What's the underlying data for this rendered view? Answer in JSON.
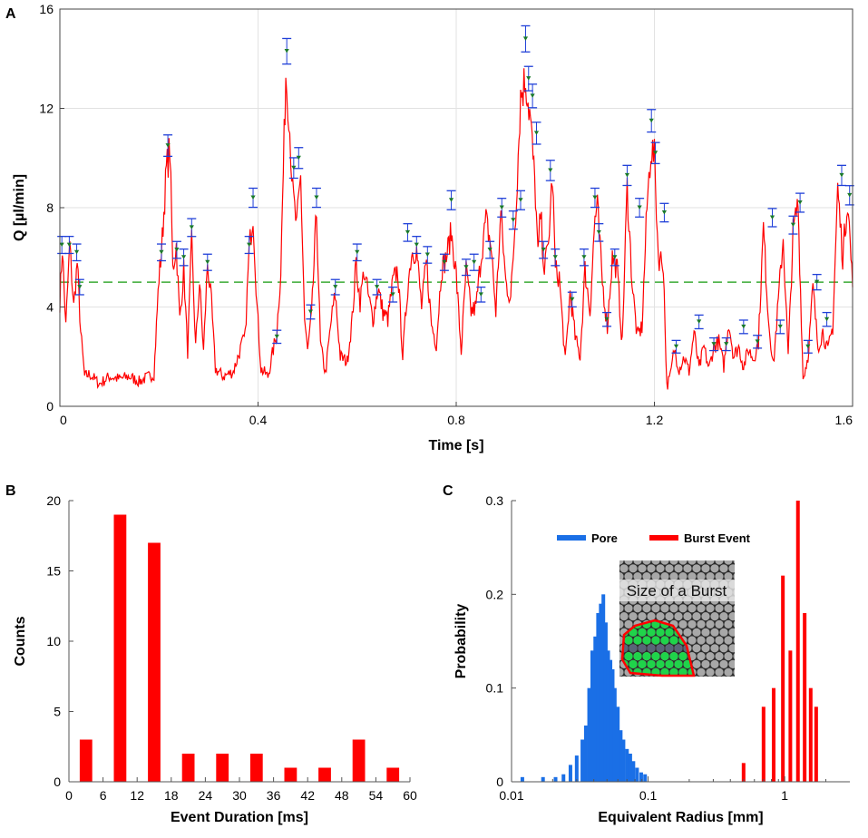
{
  "chart_data": [
    {
      "panel": "A",
      "type": "line",
      "xlabel": "Time [s]",
      "ylabel": "Q [µl/min]",
      "xlim": [
        0,
        1.6
      ],
      "ylim": [
        0,
        16
      ],
      "x_ticks": [
        0,
        0.4,
        0.8,
        1.2,
        1.6
      ],
      "x_tick_labels": [
        "0",
        "0.4",
        "0.8",
        "1.2",
        "1.6"
      ],
      "y_ticks": [
        0,
        4,
        8,
        12,
        16
      ],
      "y_tick_labels": [
        "0",
        "4",
        "8",
        "12",
        "16"
      ],
      "grid": true,
      "threshold": 5.0,
      "threshold_color": "#3aaa35",
      "line_color": "#ff0000",
      "errorbar_color": "#1f3fd8",
      "marker_color": "#1a7a2a",
      "series_keypoints": [
        [
          0,
          4.2
        ],
        [
          0.005,
          6.4
        ],
        [
          0.012,
          3.2
        ],
        [
          0.02,
          6.5
        ],
        [
          0.028,
          4.0
        ],
        [
          0.035,
          5.8
        ],
        [
          0.042,
          3.0
        ],
        [
          0.05,
          1.2
        ],
        [
          0.06,
          1.3
        ],
        [
          0.08,
          0.9
        ],
        [
          0.1,
          1.2
        ],
        [
          0.12,
          1.1
        ],
        [
          0.14,
          1.2
        ],
        [
          0.16,
          1.0
        ],
        [
          0.19,
          1.3
        ],
        [
          0.2,
          5.2
        ],
        [
          0.205,
          6.2
        ],
        [
          0.215,
          9.5
        ],
        [
          0.222,
          10.4
        ],
        [
          0.228,
          5.5
        ],
        [
          0.235,
          6.5
        ],
        [
          0.242,
          3.5
        ],
        [
          0.25,
          5.5
        ],
        [
          0.258,
          2.2
        ],
        [
          0.266,
          6.6
        ],
        [
          0.274,
          2.4
        ],
        [
          0.282,
          5.0
        ],
        [
          0.29,
          2.2
        ],
        [
          0.298,
          5.8
        ],
        [
          0.306,
          4.1
        ],
        [
          0.314,
          1.5
        ],
        [
          0.33,
          1.2
        ],
        [
          0.35,
          1.4
        ],
        [
          0.366,
          2.4
        ],
        [
          0.374,
          2.8
        ],
        [
          0.382,
          6.3
        ],
        [
          0.39,
          7.8
        ],
        [
          0.398,
          4.0
        ],
        [
          0.406,
          1.5
        ],
        [
          0.42,
          1.2
        ],
        [
          0.438,
          3.0
        ],
        [
          0.446,
          5.5
        ],
        [
          0.456,
          13.4
        ],
        [
          0.462,
          12.0
        ],
        [
          0.47,
          8.6
        ],
        [
          0.478,
          7.2
        ],
        [
          0.486,
          9.2
        ],
        [
          0.494,
          3.5
        ],
        [
          0.5,
          2.2
        ],
        [
          0.508,
          3.6
        ],
        [
          0.518,
          7.8
        ],
        [
          0.526,
          2.5
        ],
        [
          0.536,
          1.3
        ],
        [
          0.548,
          3.5
        ],
        [
          0.556,
          4.5
        ],
        [
          0.566,
          2.0
        ],
        [
          0.58,
          1.8
        ],
        [
          0.59,
          3.5
        ],
        [
          0.598,
          5.8
        ],
        [
          0.606,
          4.2
        ],
        [
          0.614,
          5.5
        ],
        [
          0.622,
          4.5
        ],
        [
          0.632,
          3.5
        ],
        [
          0.642,
          4.8
        ],
        [
          0.652,
          3.8
        ],
        [
          0.662,
          3.5
        ],
        [
          0.672,
          5.0
        ],
        [
          0.682,
          5.5
        ],
        [
          0.692,
          2.0
        ],
        [
          0.702,
          4.8
        ],
        [
          0.71,
          6.2
        ],
        [
          0.72,
          6.3
        ],
        [
          0.73,
          4.0
        ],
        [
          0.74,
          5.8
        ],
        [
          0.75,
          3.3
        ],
        [
          0.76,
          2.5
        ],
        [
          0.77,
          5.5
        ],
        [
          0.78,
          6.0
        ],
        [
          0.79,
          7.0
        ],
        [
          0.8,
          5.3
        ],
        [
          0.81,
          2.2
        ],
        [
          0.82,
          5.5
        ],
        [
          0.83,
          3.8
        ],
        [
          0.84,
          4.0
        ],
        [
          0.85,
          6.0
        ],
        [
          0.86,
          7.5
        ],
        [
          0.87,
          6.5
        ],
        [
          0.88,
          3.8
        ],
        [
          0.89,
          7.8
        ],
        [
          0.9,
          5.0
        ],
        [
          0.91,
          4.3
        ],
        [
          0.92,
          7.8
        ],
        [
          0.93,
          12.5
        ],
        [
          0.94,
          13.2
        ],
        [
          0.95,
          11.5
        ],
        [
          0.96,
          8.5
        ],
        [
          0.965,
          6.0
        ],
        [
          0.97,
          7.8
        ],
        [
          0.978,
          5.5
        ],
        [
          0.986,
          6.5
        ],
        [
          0.994,
          9.3
        ],
        [
          1.0,
          5.5
        ],
        [
          1.008,
          5.2
        ],
        [
          1.02,
          1.8
        ],
        [
          1.03,
          4.6
        ],
        [
          1.04,
          2.8
        ],
        [
          1.05,
          2.0
        ],
        [
          1.06,
          5.5
        ],
        [
          1.07,
          3.8
        ],
        [
          1.08,
          7.6
        ],
        [
          1.085,
          8.0
        ],
        [
          1.095,
          5.0
        ],
        [
          1.105,
          3.2
        ],
        [
          1.115,
          6.0
        ],
        [
          1.125,
          5.5
        ],
        [
          1.135,
          2.5
        ],
        [
          1.145,
          8.8
        ],
        [
          1.155,
          5.0
        ],
        [
          1.165,
          2.8
        ],
        [
          1.175,
          3.2
        ],
        [
          1.185,
          8.0
        ],
        [
          1.193,
          10.4
        ],
        [
          1.2,
          10.0
        ],
        [
          1.208,
          6.0
        ],
        [
          1.218,
          5.8
        ],
        [
          1.225,
          0.8
        ],
        [
          1.232,
          1.2
        ],
        [
          1.24,
          2.3
        ],
        [
          1.25,
          1.5
        ],
        [
          1.26,
          2.0
        ],
        [
          1.27,
          1.4
        ],
        [
          1.28,
          3.0
        ],
        [
          1.29,
          1.5
        ],
        [
          1.3,
          2.4
        ],
        [
          1.31,
          1.5
        ],
        [
          1.32,
          2.4
        ],
        [
          1.33,
          2.6
        ],
        [
          1.34,
          1.6
        ],
        [
          1.35,
          3.4
        ],
        [
          1.36,
          2.0
        ],
        [
          1.37,
          2.4
        ],
        [
          1.38,
          1.6
        ],
        [
          1.39,
          2.3
        ],
        [
          1.4,
          1.9
        ],
        [
          1.41,
          2.6
        ],
        [
          1.42,
          7.2
        ],
        [
          1.43,
          3.6
        ],
        [
          1.44,
          1.6
        ],
        [
          1.45,
          4.2
        ],
        [
          1.46,
          6.8
        ],
        [
          1.47,
          2.0
        ],
        [
          1.48,
          7.0
        ],
        [
          1.49,
          8.2
        ],
        [
          1.5,
          1.1
        ],
        [
          1.51,
          2.0
        ],
        [
          1.52,
          4.8
        ],
        [
          1.53,
          2.4
        ],
        [
          1.54,
          3.0
        ],
        [
          1.55,
          2.2
        ],
        [
          1.56,
          3.2
        ],
        [
          1.57,
          8.8
        ],
        [
          1.58,
          6.0
        ],
        [
          1.59,
          8.4
        ],
        [
          1.6,
          4.8
        ]
      ],
      "burst_peaks": [
        [
          0.004,
          6.5
        ],
        [
          0.019,
          6.5
        ],
        [
          0.034,
          6.2
        ],
        [
          0.04,
          4.8
        ],
        [
          0.205,
          6.2
        ],
        [
          0.218,
          10.5
        ],
        [
          0.236,
          6.3
        ],
        [
          0.25,
          6.0
        ],
        [
          0.266,
          7.2
        ],
        [
          0.298,
          5.8
        ],
        [
          0.382,
          6.5
        ],
        [
          0.39,
          8.4
        ],
        [
          0.438,
          2.8
        ],
        [
          0.458,
          14.3
        ],
        [
          0.472,
          9.6
        ],
        [
          0.482,
          10.0
        ],
        [
          0.506,
          3.8
        ],
        [
          0.518,
          8.4
        ],
        [
          0.556,
          4.8
        ],
        [
          0.6,
          6.2
        ],
        [
          0.64,
          4.8
        ],
        [
          0.672,
          4.5
        ],
        [
          0.702,
          7.0
        ],
        [
          0.72,
          6.5
        ],
        [
          0.742,
          6.1
        ],
        [
          0.776,
          5.8
        ],
        [
          0.79,
          8.3
        ],
        [
          0.82,
          5.6
        ],
        [
          0.836,
          5.8
        ],
        [
          0.85,
          4.5
        ],
        [
          0.868,
          6.3
        ],
        [
          0.892,
          8.0
        ],
        [
          0.915,
          7.5
        ],
        [
          0.93,
          8.3
        ],
        [
          0.94,
          14.8
        ],
        [
          0.946,
          13.2
        ],
        [
          0.954,
          12.5
        ],
        [
          0.962,
          11.0
        ],
        [
          0.976,
          6.3
        ],
        [
          0.99,
          9.5
        ],
        [
          1.0,
          6.0
        ],
        [
          1.034,
          4.3
        ],
        [
          1.058,
          6.0
        ],
        [
          1.08,
          8.4
        ],
        [
          1.088,
          7.0
        ],
        [
          1.104,
          3.5
        ],
        [
          1.12,
          6.0
        ],
        [
          1.145,
          9.3
        ],
        [
          1.17,
          8.0
        ],
        [
          1.194,
          11.5
        ],
        [
          1.202,
          10.2
        ],
        [
          1.22,
          7.8
        ],
        [
          1.244,
          2.4
        ],
        [
          1.29,
          3.4
        ],
        [
          1.32,
          2.5
        ],
        [
          1.345,
          2.5
        ],
        [
          1.38,
          3.2
        ],
        [
          1.408,
          2.6
        ],
        [
          1.438,
          7.6
        ],
        [
          1.454,
          3.2
        ],
        [
          1.48,
          7.3
        ],
        [
          1.494,
          8.2
        ],
        [
          1.51,
          2.4
        ],
        [
          1.528,
          5.0
        ],
        [
          1.548,
          3.5
        ],
        [
          1.578,
          9.3
        ],
        [
          1.594,
          8.5
        ]
      ]
    },
    {
      "panel": "B",
      "type": "bar",
      "xlabel": "Event Duration [ms]",
      "ylabel": "Counts",
      "xlim": [
        0,
        60
      ],
      "ylim": [
        0,
        20
      ],
      "x_ticks": [
        0,
        6,
        12,
        18,
        24,
        30,
        36,
        42,
        48,
        54,
        60
      ],
      "x_tick_labels": [
        "0",
        "6",
        "12",
        "18",
        "24",
        "30",
        "36",
        "42",
        "48",
        "54",
        "60"
      ],
      "y_ticks": [
        0,
        5,
        10,
        15,
        20
      ],
      "y_tick_labels": [
        "0",
        "5",
        "10",
        "15",
        "20"
      ],
      "bar_width": 2.2,
      "bar_color": "#ff0000",
      "x": [
        3,
        9,
        15,
        21,
        27,
        33,
        39,
        45,
        51,
        57
      ],
      "values": [
        3,
        19,
        17,
        2,
        2,
        2,
        1,
        1,
        3,
        1
      ]
    },
    {
      "panel": "C",
      "type": "bar",
      "x_scale": "log",
      "xlabel": "Equivalent Radius [mm]",
      "ylabel": "Probability",
      "xlim": [
        0.01,
        3
      ],
      "ylim": [
        0,
        0.3
      ],
      "x_ticks": [
        0.01,
        0.1,
        1
      ],
      "x_tick_labels": [
        "0.01",
        "0.1",
        "1"
      ],
      "y_ticks": [
        0,
        0.1,
        0.2,
        0.3
      ],
      "y_tick_labels": [
        "0",
        "0.1",
        "0.2",
        "0.3"
      ],
      "legend_position": "upper-center",
      "series": [
        {
          "name": "Pore",
          "color": "#1a6fe6",
          "x": [
            0.012,
            0.017,
            0.021,
            0.024,
            0.027,
            0.03,
            0.033,
            0.035,
            0.037,
            0.039,
            0.041,
            0.043,
            0.045,
            0.047,
            0.049,
            0.051,
            0.053,
            0.055,
            0.057,
            0.06,
            0.063,
            0.066,
            0.07,
            0.074,
            0.078,
            0.083,
            0.089,
            0.095
          ],
          "values": [
            0.005,
            0.005,
            0.005,
            0.008,
            0.018,
            0.028,
            0.045,
            0.06,
            0.1,
            0.14,
            0.155,
            0.18,
            0.19,
            0.2,
            0.17,
            0.14,
            0.13,
            0.12,
            0.1,
            0.08,
            0.055,
            0.045,
            0.035,
            0.03,
            0.022,
            0.015,
            0.01,
            0.008
          ]
        },
        {
          "name": "Burst Event",
          "color": "#ff0000",
          "x": [
            0.5,
            0.7,
            0.83,
            0.97,
            1.1,
            1.25,
            1.4,
            1.55,
            1.7
          ],
          "values": [
            0.02,
            0.08,
            0.1,
            0.22,
            0.14,
            0.3,
            0.18,
            0.1,
            0.08
          ]
        }
      ],
      "inset": {
        "title": "Size of a Burst",
        "description_colors": {
          "background": "#2b2b2b",
          "grain": "#a8a8a8",
          "region": "#1fd44a",
          "outline": "#ff0000"
        }
      }
    }
  ]
}
